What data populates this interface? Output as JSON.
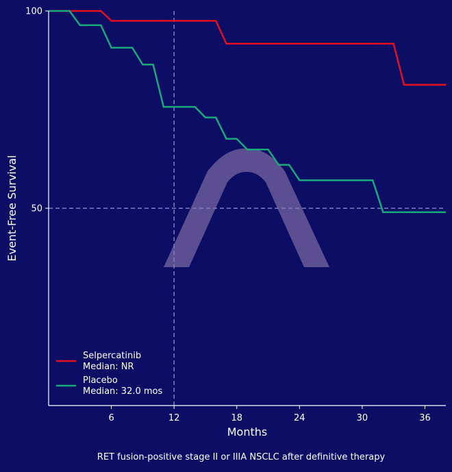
{
  "chart_data": {
    "type": "line",
    "xlabel": "Months",
    "ylabel": "Event-Free Survival",
    "caption": "RET fusion-positive stage II or IIIA NSCLC after definitive therapy",
    "xlim": [
      0,
      38
    ],
    "ylim": [
      0,
      100
    ],
    "xticks": [
      6,
      12,
      18,
      24,
      30,
      36
    ],
    "yticks": [
      50,
      100
    ],
    "reference_lines": {
      "x": 12,
      "y": 50
    },
    "grid": false,
    "legend_position": "bottom-left",
    "colors": {
      "background": "#0c0e66",
      "axis": "#ffffff",
      "reference": "#7e7fc0",
      "watermark": "#6a5a9a"
    },
    "watermark_icon": "lambda-logo",
    "series": [
      {
        "name": "Selpercatinib",
        "median": "Median: NR",
        "color": "#e3101f",
        "x": [
          0,
          5,
          6,
          16,
          17,
          33,
          34,
          38
        ],
        "y": [
          100,
          100,
          97.5,
          97.5,
          91.7,
          91.7,
          81.3,
          81.3
        ]
      },
      {
        "name": "Placebo",
        "median": "Median: 32.0 mos",
        "color": "#1aa97a",
        "x": [
          0,
          2,
          3,
          5,
          6,
          8,
          9,
          10,
          11,
          14,
          15,
          16,
          17,
          18,
          19,
          21,
          22,
          23,
          24,
          31,
          32,
          38
        ],
        "y": [
          100,
          100,
          96.4,
          96.4,
          90.7,
          90.7,
          86.4,
          86.4,
          75.7,
          75.7,
          73.0,
          73.0,
          67.6,
          67.6,
          64.9,
          64.9,
          61.0,
          61.0,
          57.1,
          57.1,
          49.0,
          49.0
        ]
      }
    ]
  }
}
